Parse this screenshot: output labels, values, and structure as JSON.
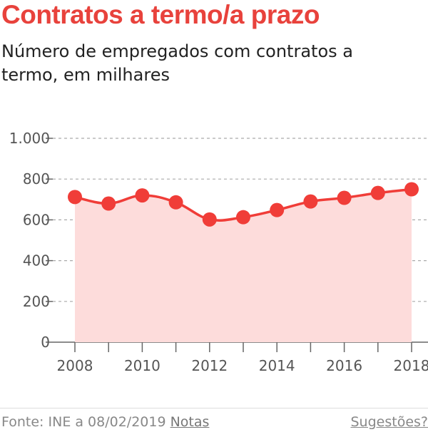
{
  "header": {
    "title": "Contratos a termo/a prazo",
    "subtitle": "Número de empregados com contratos a termo, em milhares"
  },
  "chart_data": {
    "type": "line",
    "x": [
      2008,
      2009,
      2010,
      2011,
      2012,
      2013,
      2014,
      2015,
      2016,
      2017,
      2018
    ],
    "series": [
      {
        "values": [
          712,
          680,
          720,
          686,
          602,
          613,
          648,
          690,
          708,
          732,
          750
        ]
      }
    ],
    "yticks": [
      0,
      200,
      400,
      600,
      800,
      1000
    ],
    "ytick_labels": [
      "0",
      "200",
      "400",
      "600",
      "800",
      "1.000"
    ],
    "xticks": [
      2008,
      2010,
      2012,
      2014,
      2016,
      2018
    ],
    "xtick_labels": [
      "2008",
      "2010",
      "2012",
      "2014",
      "2016",
      "2018"
    ],
    "ylim": [
      0,
      1000
    ],
    "xlim": [
      2008,
      2018
    ],
    "grid": true,
    "area_fill": true,
    "colors": {
      "line": "#f03d38",
      "area": "#fddcdb",
      "grid": "#aaaaaa"
    }
  },
  "footer": {
    "source": "Fonte: INE a 08/02/2019",
    "notes_label": "Notas",
    "suggestions_label": "Sugestões?"
  }
}
